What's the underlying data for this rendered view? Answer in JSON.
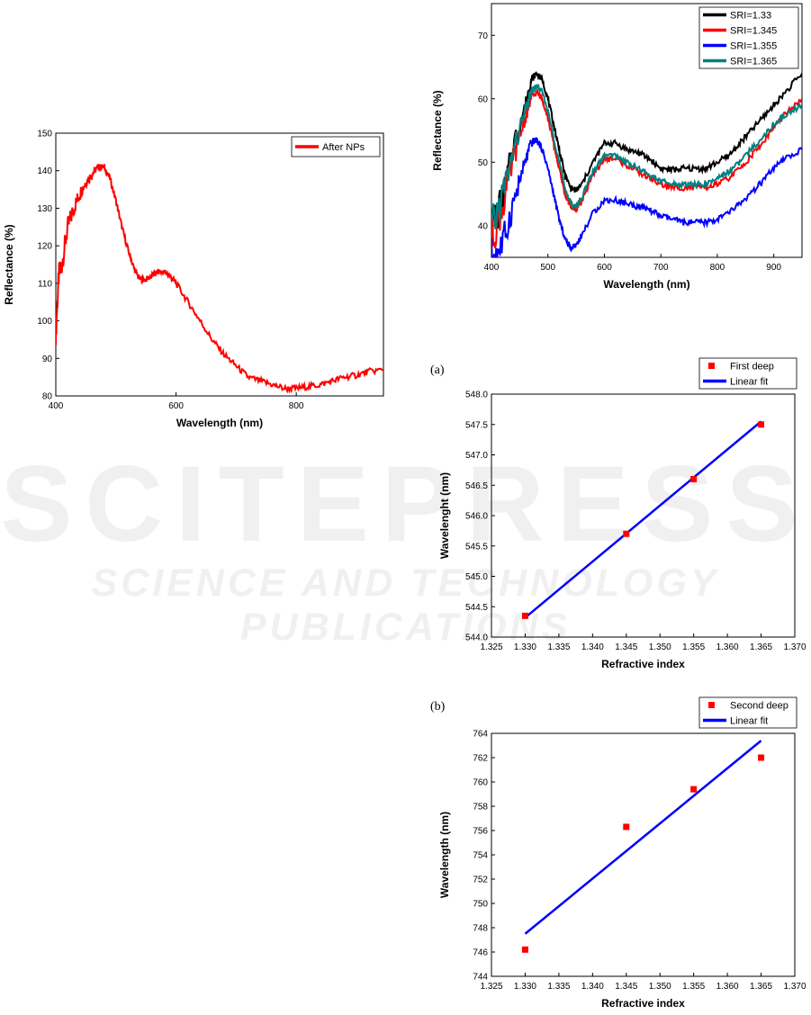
{
  "watermark": {
    "line1": "SCITEPRESS",
    "line2": "SCIENCE AND TECHNOLOGY PUBLICATIONS"
  },
  "labels": {
    "a": "(a)",
    "b": "(b)"
  },
  "chart_data": [
    {
      "type": "line",
      "xlabel": "Wavelength (nm)",
      "ylabel": "Reflectance (%)",
      "xlim": [
        400,
        945
      ],
      "ylim": [
        80,
        150
      ],
      "xticks": [
        400,
        600,
        800
      ],
      "yticks": [
        80,
        90,
        100,
        110,
        120,
        130,
        140,
        150
      ],
      "legend_position": "top-right",
      "series": [
        {
          "name": "After NPs",
          "color": "#ff0000",
          "x": [
            400,
            405,
            410,
            420,
            430,
            440,
            450,
            460,
            470,
            480,
            490,
            500,
            510,
            520,
            530,
            540,
            550,
            560,
            570,
            580,
            590,
            600,
            620,
            640,
            660,
            680,
            700,
            720,
            740,
            760,
            780,
            800,
            820,
            840,
            860,
            880,
            900,
            920,
            945
          ],
          "y": [
            97,
            112,
            115,
            125,
            130,
            134,
            137,
            139,
            141,
            141,
            138,
            132,
            125,
            119,
            114,
            111,
            111,
            112,
            113,
            113,
            112,
            110,
            105,
            100,
            95,
            91,
            88,
            85,
            84,
            83,
            82,
            82,
            82.5,
            83,
            84,
            85,
            85.5,
            86.5,
            87
          ]
        }
      ]
    },
    {
      "type": "line",
      "xlabel": "Wavelength (nm)",
      "ylabel": "Reflectance (%)",
      "xlim": [
        400,
        950
      ],
      "ylim": [
        35,
        75
      ],
      "xticks": [
        400,
        500,
        600,
        700,
        800,
        900
      ],
      "yticks": [
        40,
        50,
        60,
        70
      ],
      "legend_position": "top-right",
      "series": [
        {
          "name": "SRI=1.33",
          "color": "#000000",
          "x": [
            400,
            420,
            440,
            460,
            470,
            480,
            490,
            500,
            510,
            520,
            530,
            540,
            550,
            560,
            580,
            600,
            620,
            640,
            660,
            680,
            700,
            720,
            740,
            760,
            780,
            800,
            820,
            840,
            860,
            880,
            900,
            920,
            950
          ],
          "y": [
            40,
            44,
            53,
            59,
            63,
            64,
            63,
            60,
            56,
            52,
            48,
            46,
            45.5,
            46.5,
            50,
            53,
            53,
            52,
            51.5,
            50.5,
            49,
            48.8,
            49,
            49,
            49,
            50,
            51,
            53,
            55,
            57,
            59,
            61,
            64
          ]
        },
        {
          "name": "SRI=1.345",
          "color": "#ff0000",
          "x": [
            400,
            420,
            440,
            460,
            470,
            480,
            490,
            500,
            510,
            520,
            530,
            540,
            550,
            560,
            580,
            600,
            620,
            640,
            660,
            680,
            700,
            720,
            740,
            760,
            780,
            800,
            820,
            840,
            860,
            880,
            900,
            920,
            950
          ],
          "y": [
            38,
            43,
            51,
            57,
            60,
            61,
            60,
            57,
            53,
            49,
            45,
            43,
            42.5,
            44,
            48,
            50.5,
            50.5,
            49.5,
            48.5,
            47.5,
            46.5,
            46,
            46,
            46,
            46,
            46.5,
            47.5,
            49,
            51,
            53,
            55.5,
            57.5,
            60
          ]
        },
        {
          "name": "SRI=1.355",
          "color": "#0000ff",
          "x": [
            400,
            420,
            440,
            460,
            470,
            480,
            490,
            500,
            510,
            520,
            530,
            540,
            550,
            560,
            580,
            600,
            620,
            640,
            660,
            680,
            700,
            720,
            740,
            760,
            780,
            800,
            820,
            840,
            860,
            880,
            900,
            920,
            950
          ],
          "y": [
            35,
            37,
            44,
            50,
            53,
            53.5,
            52,
            49,
            45,
            41,
            38,
            36.5,
            37,
            38.5,
            42,
            44,
            44,
            43.5,
            43,
            42.5,
            41.5,
            41,
            40.5,
            40.5,
            40.5,
            41,
            42,
            43.5,
            45,
            47,
            49,
            50.5,
            52
          ]
        },
        {
          "name": "SRI=1.365",
          "color": "#008080",
          "x": [
            400,
            420,
            440,
            460,
            470,
            480,
            490,
            500,
            510,
            520,
            530,
            540,
            550,
            560,
            580,
            600,
            620,
            640,
            660,
            680,
            700,
            720,
            740,
            760,
            780,
            800,
            820,
            840,
            860,
            880,
            900,
            920,
            950
          ],
          "y": [
            39,
            45,
            52,
            58,
            61,
            62,
            61,
            58,
            54,
            50,
            46,
            43.5,
            43,
            44.5,
            48.5,
            51,
            51,
            50,
            49,
            48,
            47,
            46.5,
            46.5,
            46.5,
            46.5,
            47.5,
            48.5,
            50,
            52,
            54,
            56,
            57.5,
            59
          ]
        }
      ]
    },
    {
      "type": "scatter",
      "xlabel": "Refractive index",
      "ylabel": "Wavelenght (nm)",
      "xlim": [
        1.325,
        1.37
      ],
      "ylim": [
        544.0,
        548.0
      ],
      "xticks": [
        "1.325",
        "1.330",
        "1.335",
        "1.340",
        "1.345",
        "1.350",
        "1.355",
        "1.360",
        "1.365",
        "1.370"
      ],
      "yticks": [
        "544.0",
        "544.5",
        "545.0",
        "545.5",
        "546.0",
        "546.5",
        "547.0",
        "547.5",
        "548.0"
      ],
      "legend_position": "top-right",
      "series": [
        {
          "name": "First deep",
          "color": "#ff0000",
          "x": [
            1.33,
            1.345,
            1.355,
            1.365
          ],
          "y": [
            544.35,
            545.7,
            546.6,
            547.5
          ]
        },
        {
          "name": "Linear fit",
          "color": "#0000ff",
          "x": [
            1.33,
            1.365
          ],
          "y": [
            544.32,
            547.55
          ]
        }
      ]
    },
    {
      "type": "scatter",
      "xlabel": "Refractive index",
      "ylabel": "Wavelength (nm)",
      "xlim": [
        1.325,
        1.37
      ],
      "ylim": [
        744,
        764
      ],
      "xticks": [
        "1.325",
        "1.330",
        "1.335",
        "1.340",
        "1.345",
        "1.350",
        "1.355",
        "1.360",
        "1.365",
        "1.370"
      ],
      "yticks": [
        "744",
        "746",
        "748",
        "750",
        "752",
        "754",
        "756",
        "758",
        "760",
        "762",
        "764"
      ],
      "legend_position": "top-right",
      "series": [
        {
          "name": "Second deep",
          "color": "#ff0000",
          "x": [
            1.33,
            1.345,
            1.355,
            1.365
          ],
          "y": [
            746.2,
            756.3,
            759.4,
            762.0
          ]
        },
        {
          "name": "Linear fit",
          "color": "#0000ff",
          "x": [
            1.33,
            1.365
          ],
          "y": [
            747.5,
            763.4
          ]
        }
      ]
    }
  ]
}
